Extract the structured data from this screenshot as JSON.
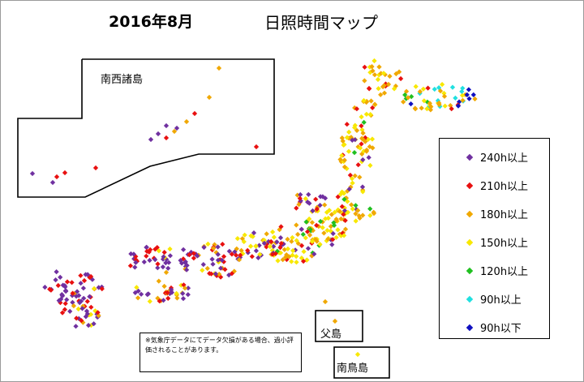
{
  "header": {
    "date_title": "2016年8月",
    "map_title": "日照時間マップ"
  },
  "insets": {
    "nansei_label": "南西諸島",
    "chichijima_label": "父島",
    "minamitorishima_label": "南鳥島"
  },
  "legend": {
    "items": [
      {
        "label": "240h以上",
        "color": "#7030a0"
      },
      {
        "label": "210h以上",
        "color": "#e81010"
      },
      {
        "label": "180h以上",
        "color": "#f0a800"
      },
      {
        "label": "150h以上",
        "color": "#f8e800"
      },
      {
        "label": "120h以上",
        "color": "#20c020"
      },
      {
        "label": "90h以上",
        "color": "#20e0e0"
      },
      {
        "label": "90h以下",
        "color": "#1010c0"
      }
    ]
  },
  "note": "※気象庁データにてデータ欠損がある場合、過小評価されることがあります。"
}
